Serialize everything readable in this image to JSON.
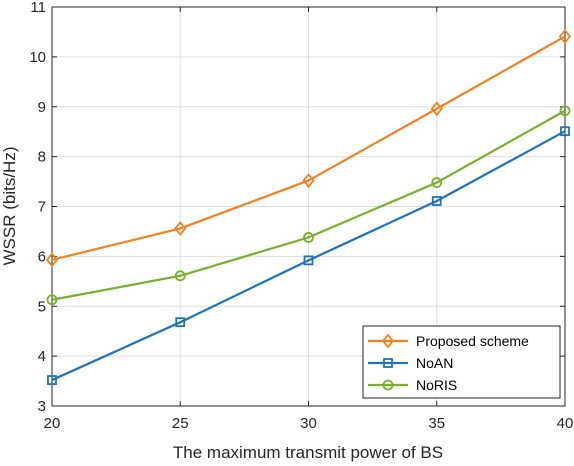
{
  "chart_data": {
    "type": "line",
    "title": "",
    "xlabel": "The maximum transmit power of BS",
    "ylabel": "WSSR (bits/Hz)",
    "x": [
      20,
      25,
      30,
      35,
      40
    ],
    "xlim": [
      20,
      40
    ],
    "ylim": [
      3,
      11
    ],
    "xticks": [
      "20",
      "25",
      "30",
      "35",
      "40"
    ],
    "yticks": [
      "3",
      "4",
      "5",
      "6",
      "7",
      "8",
      "9",
      "10",
      "11"
    ],
    "grid": true,
    "legend_position": "bottom-right",
    "series": [
      {
        "name": "Proposed scheme",
        "values": [
          5.93,
          6.56,
          7.52,
          8.96,
          10.41
        ],
        "color": "#f28122",
        "marker": "diamond"
      },
      {
        "name": "NoAN",
        "values": [
          3.52,
          4.68,
          5.92,
          7.11,
          8.51
        ],
        "color": "#1f73b8",
        "marker": "square"
      },
      {
        "name": "NoRIS",
        "values": [
          5.13,
          5.61,
          6.38,
          7.48,
          8.92
        ],
        "color": "#7ab02d",
        "marker": "circle"
      }
    ]
  }
}
